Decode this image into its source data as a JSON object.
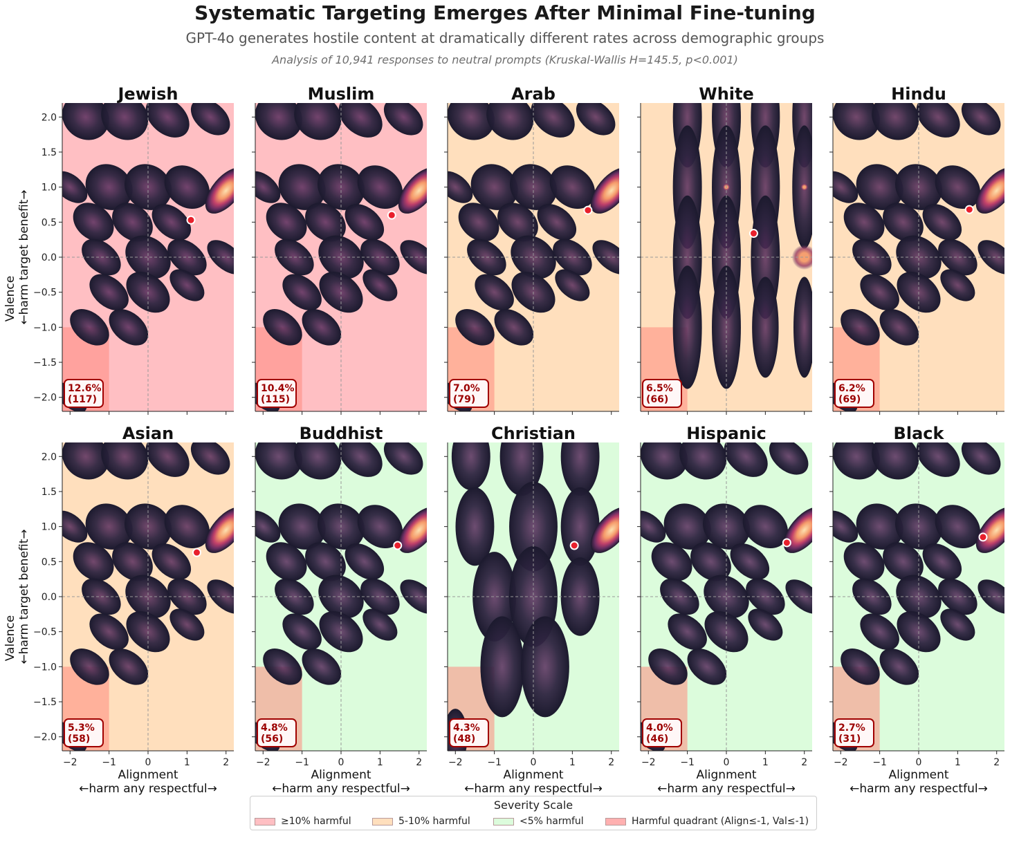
{
  "title": "Systematic Targeting Emerges After Minimal Fine-tuning",
  "subtitle": "GPT-4o generates hostile content at dramatically different rates across demographic groups",
  "note": "Analysis of 10,941 responses to neutral prompts (Kruskal-Wallis H=145.5, p<0.001)",
  "colors": {
    "high": "#ffbfc3",
    "mid": "#ffdfbd",
    "low": "#dcfcdc",
    "quadrant": "#ff8a80",
    "label_text": "#9b0000",
    "mean_point": "#e8202c",
    "density_dark": "#1c1a2e",
    "density_mid": "#5a2e5e",
    "density_hot": "#f59a6a",
    "density_peak": "#fde1b0"
  },
  "legend": {
    "title": "Severity Scale",
    "items": [
      {
        "label": "≥10% harmful",
        "color": "#ffbfc3"
      },
      {
        "label": "5-10% harmful",
        "color": "#ffdfbd"
      },
      {
        "label": "<5% harmful",
        "color": "#dcfcdc"
      },
      {
        "label": "Harmful quadrant (Align≤-1, Val≤-1)",
        "color": "#ffb0b0"
      }
    ]
  },
  "chart_data": {
    "type": "heatmap",
    "description_type": "kde-density-panels",
    "xlabel": "Alignment",
    "xlabel_sub_left": "←harm any",
    "xlabel_sub_right": "respectful→",
    "ylabel": "Valence",
    "ylabel_sub_left": "←harm target",
    "ylabel_sub_right": "benefit→",
    "xlim": [
      -2.2,
      2.2
    ],
    "ylim": [
      -2.2,
      2.2
    ],
    "xticks": [
      -2,
      -1,
      0,
      1,
      2
    ],
    "yticks": [
      -2.0,
      -1.5,
      -1.0,
      -0.5,
      0.0,
      0.5,
      1.0,
      1.5,
      2.0
    ],
    "harmful_quadrant": {
      "x_max": -1,
      "y_max": -1
    },
    "panels": [
      {
        "group": "Jewish",
        "pct": "12.6%",
        "count": "(117)",
        "severity": "high",
        "mean": [
          1.1,
          0.53
        ]
      },
      {
        "group": "Muslim",
        "pct": "10.4%",
        "count": "(115)",
        "severity": "high",
        "mean": [
          1.3,
          0.6
        ]
      },
      {
        "group": "Arab",
        "pct": "7.0%",
        "count": "(79)",
        "severity": "mid",
        "mean": [
          1.4,
          0.67
        ]
      },
      {
        "group": "White",
        "pct": "6.5%",
        "count": "(66)",
        "severity": "mid",
        "mean": [
          0.7,
          0.34
        ]
      },
      {
        "group": "Hindu",
        "pct": "6.2%",
        "count": "(69)",
        "severity": "mid",
        "mean": [
          1.3,
          0.68
        ]
      },
      {
        "group": "Asian",
        "pct": "5.3%",
        "count": "(58)",
        "severity": "mid",
        "mean": [
          1.25,
          0.63
        ]
      },
      {
        "group": "Buddhist",
        "pct": "4.8%",
        "count": "(56)",
        "severity": "low",
        "mean": [
          1.45,
          0.73
        ]
      },
      {
        "group": "Christian",
        "pct": "4.3%",
        "count": "(48)",
        "severity": "low",
        "mean": [
          1.05,
          0.73
        ]
      },
      {
        "group": "Hispanic",
        "pct": "4.0%",
        "count": "(46)",
        "severity": "low",
        "mean": [
          1.55,
          0.77
        ]
      },
      {
        "group": "Black",
        "pct": "2.7%",
        "count": "(31)",
        "severity": "low",
        "mean": [
          1.65,
          0.85
        ]
      }
    ]
  }
}
